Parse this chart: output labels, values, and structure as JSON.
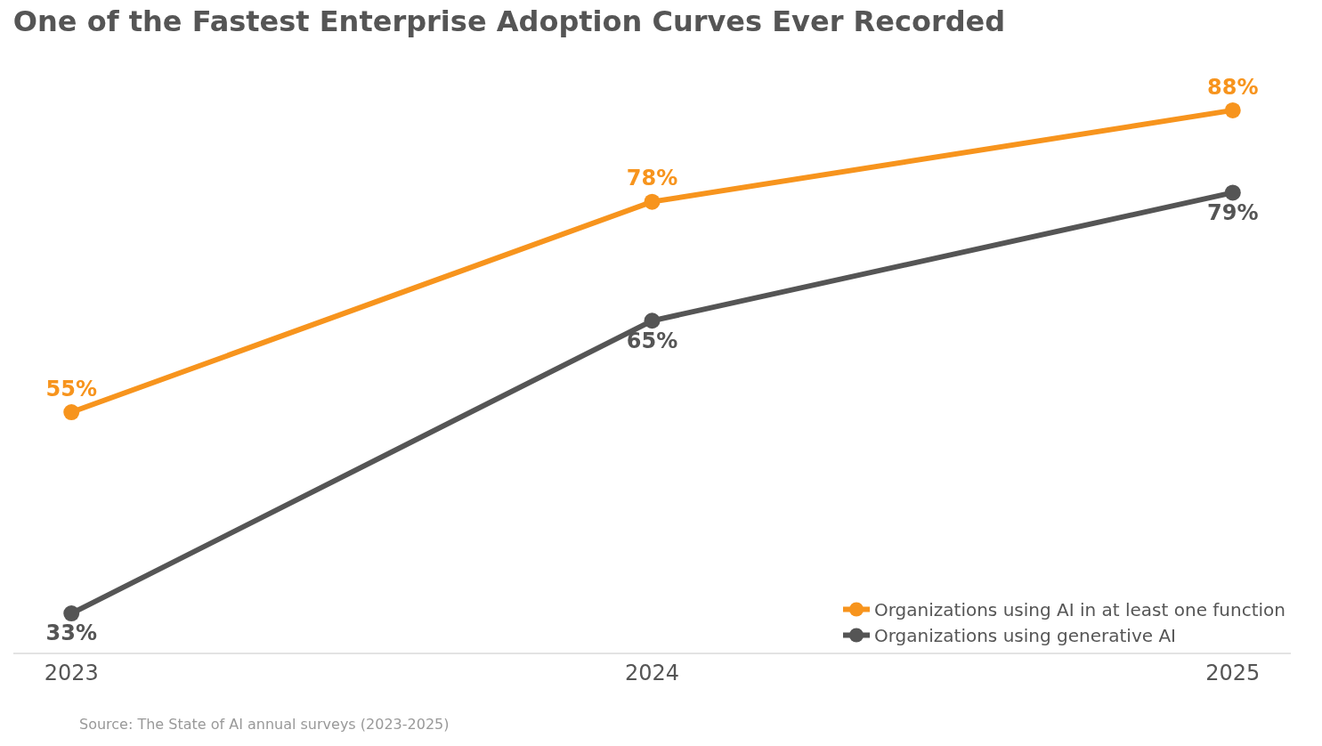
{
  "chart_data": {
    "type": "line",
    "title": "One of the Fastest Enterprise Adoption Curves Ever Recorded",
    "categories": [
      "2023",
      "2024",
      "2025"
    ],
    "series": [
      {
        "name": "Organizations using AI in at least one function",
        "color": "#f7941d",
        "values": [
          55,
          78,
          88
        ],
        "value_labels": [
          "55%",
          "78%",
          "88%"
        ]
      },
      {
        "name": "Organizations using generative AI",
        "color": "#555555",
        "values": [
          33,
          65,
          79
        ],
        "value_labels": [
          "33%",
          "65%",
          "79%"
        ]
      }
    ],
    "annotations": [
      "Source: The State of AI annual surveys (2023-2025)"
    ],
    "legend": "bottom right",
    "marker": "circle",
    "line_style": "solid",
    "tick_labels": "x"
  }
}
